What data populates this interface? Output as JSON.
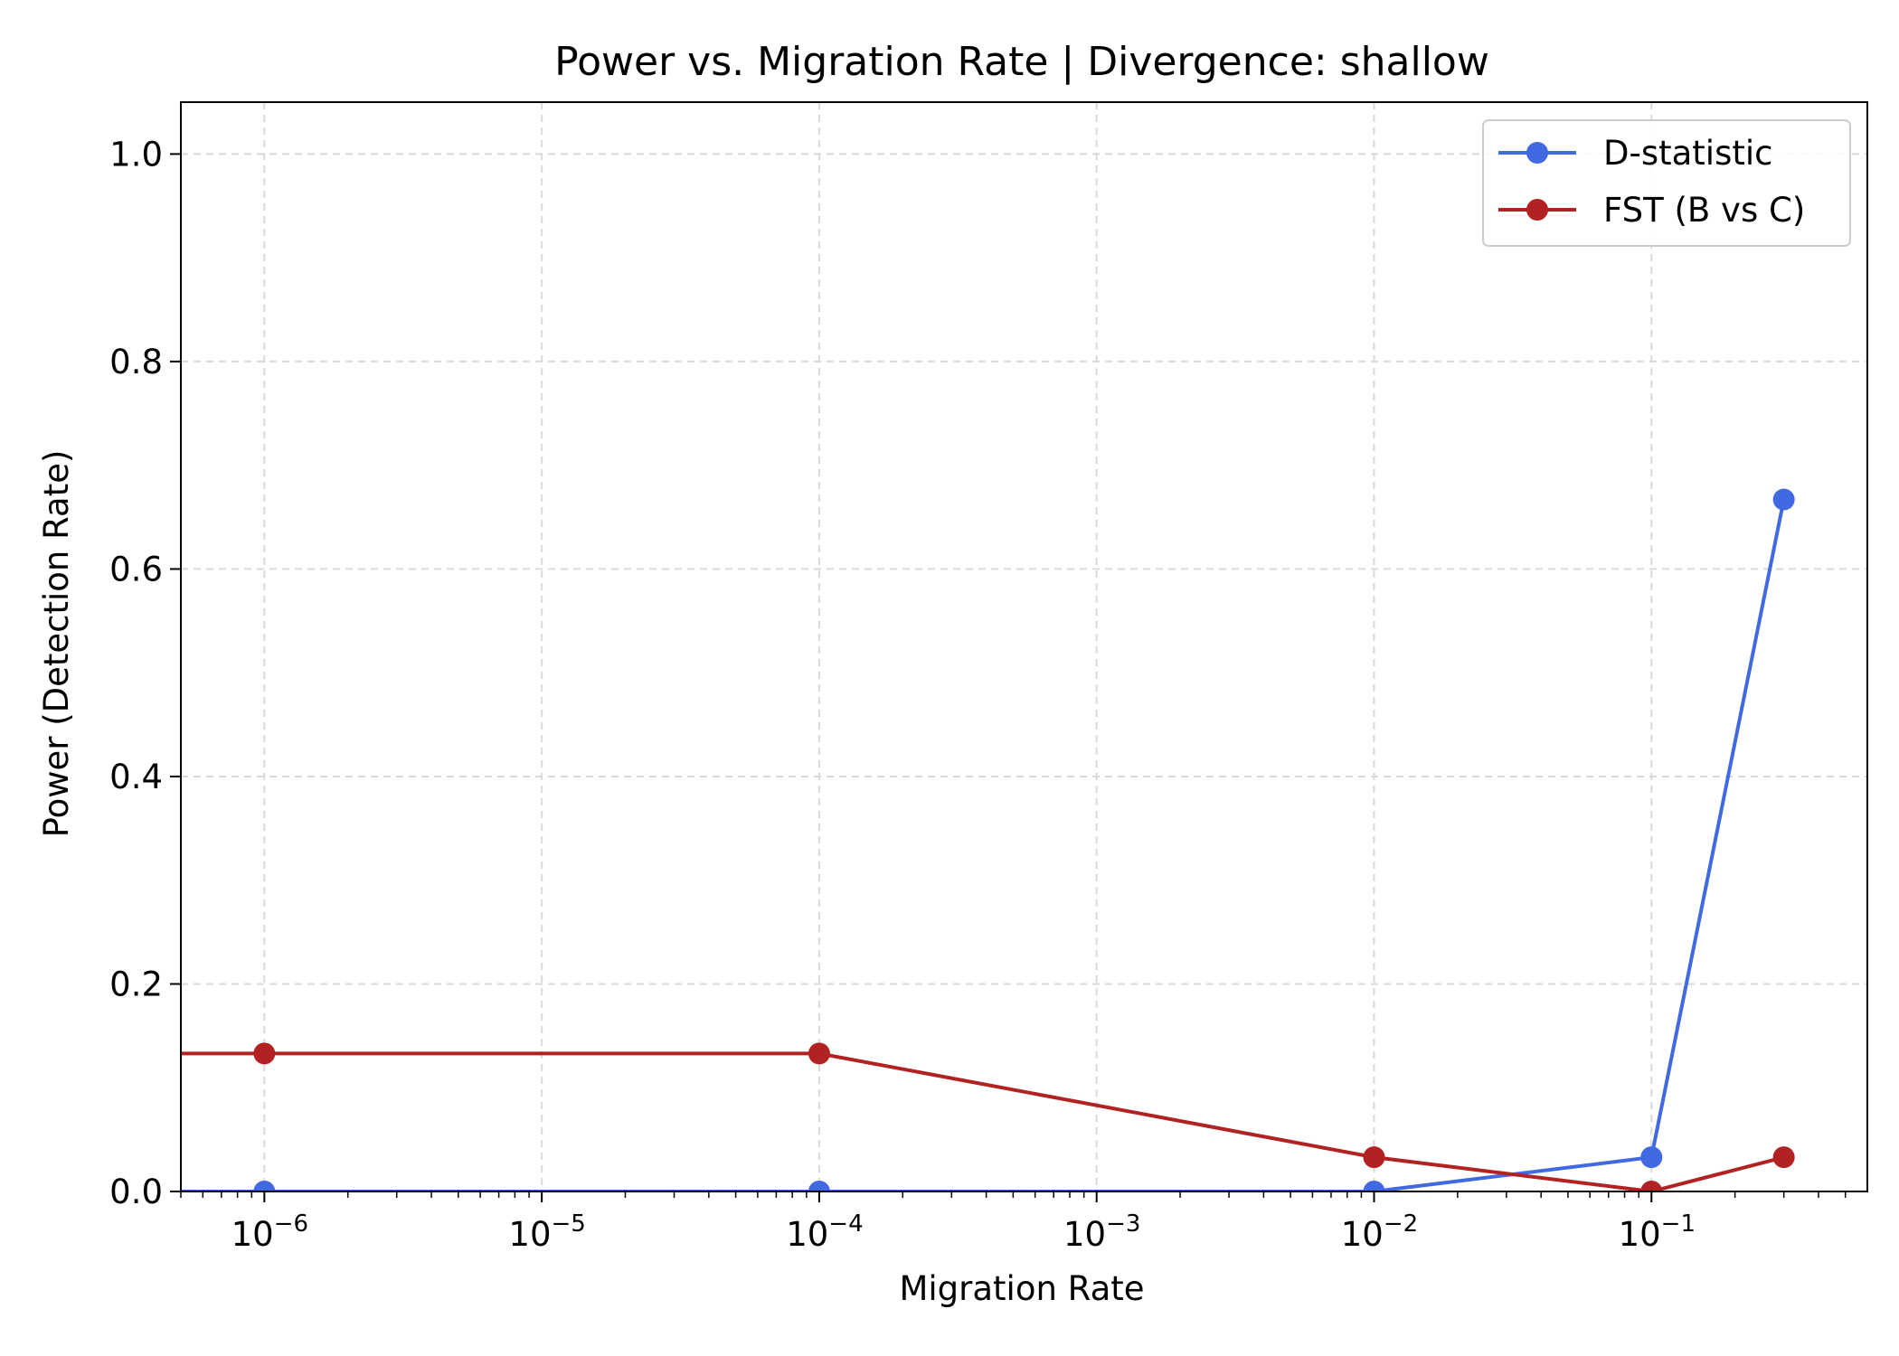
{
  "chart_data": {
    "type": "line",
    "title": "Power vs. Migration Rate | Divergence: shallow",
    "xlabel": "Migration Rate",
    "ylabel": "Power (Detection Rate)",
    "x_scale": "log",
    "xlim": [
      5e-07,
      0.6
    ],
    "ylim": [
      0,
      1.05
    ],
    "grid": true,
    "legend_position": "top-right",
    "x_ticks": [
      {
        "value": 1e-06,
        "base": "10",
        "exp": "−6"
      },
      {
        "value": 1e-05,
        "base": "10",
        "exp": "−5"
      },
      {
        "value": 0.0001,
        "base": "10",
        "exp": "−4"
      },
      {
        "value": 0.001,
        "base": "10",
        "exp": "−3"
      },
      {
        "value": 0.01,
        "base": "10",
        "exp": "−2"
      },
      {
        "value": 0.1,
        "base": "10",
        "exp": "−1"
      }
    ],
    "y_ticks": [
      {
        "value": 0.0,
        "label": "0.0"
      },
      {
        "value": 0.2,
        "label": "0.2"
      },
      {
        "value": 0.4,
        "label": "0.4"
      },
      {
        "value": 0.6,
        "label": "0.6"
      },
      {
        "value": 0.8,
        "label": "0.8"
      },
      {
        "value": 1.0,
        "label": "1.0"
      }
    ],
    "series": [
      {
        "name": "D-statistic",
        "color": "#4169e1",
        "x": [
          0,
          1e-06,
          0.0001,
          0.01,
          0.1,
          0.3
        ],
        "y": [
          0.0,
          0.0,
          0.0,
          0.0,
          0.033,
          0.667
        ]
      },
      {
        "name": "FST (B vs C)",
        "color": "#b22222",
        "x": [
          0,
          1e-06,
          0.0001,
          0.01,
          0.1,
          0.3
        ],
        "y": [
          0.133,
          0.133,
          0.133,
          0.033,
          0.0,
          0.033
        ]
      }
    ]
  }
}
